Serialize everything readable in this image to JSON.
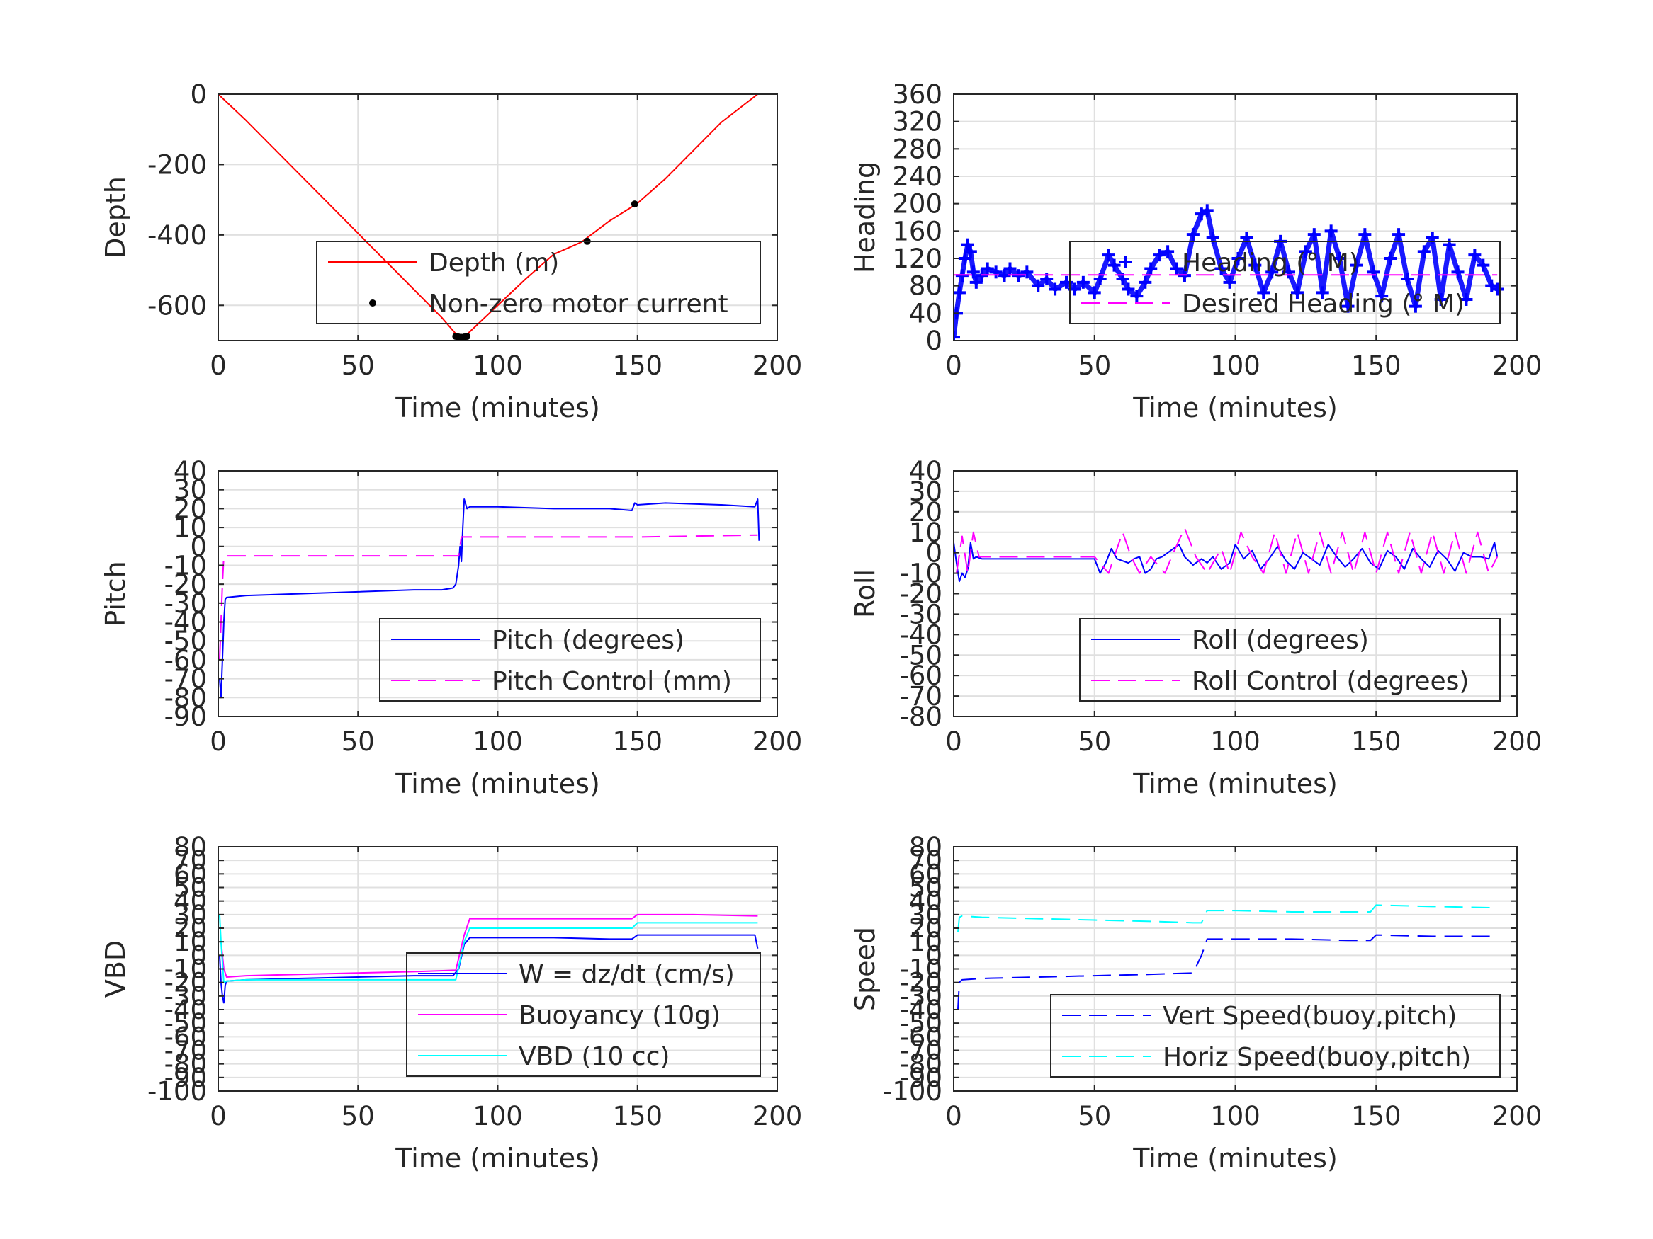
{
  "chart_data": [
    {
      "type": "line",
      "xlabel": "Time (minutes)",
      "ylabel": "Depth",
      "xlim": [
        0,
        200
      ],
      "ylim": [
        -700,
        0
      ],
      "xticks": [
        0,
        50,
        100,
        150,
        200
      ],
      "yticks": [
        0,
        -200,
        -400,
        -600
      ],
      "grid": true,
      "legend_position": "lower-right",
      "series": [
        {
          "name": "Depth (m)",
          "color": "#ff0000",
          "style": "solid",
          "x": [
            0,
            10,
            20,
            30,
            40,
            50,
            60,
            70,
            80,
            86,
            88,
            100,
            110,
            120,
            130,
            140,
            150,
            160,
            170,
            180,
            193
          ],
          "y": [
            0,
            -75,
            -155,
            -235,
            -315,
            -395,
            -475,
            -555,
            -635,
            -690,
            -690,
            -600,
            -525,
            -455,
            -420,
            -360,
            -310,
            -240,
            -160,
            -80,
            0
          ]
        },
        {
          "name": "Non-zero motor current",
          "color": "#000000",
          "style": "dot",
          "x": [
            85,
            86,
            87,
            88,
            89,
            132,
            149
          ],
          "y": [
            -688,
            -690,
            -691,
            -690,
            -688,
            -418,
            -312
          ]
        }
      ]
    },
    {
      "type": "scatter",
      "xlabel": "Time (minutes)",
      "ylabel": "Heading",
      "xlim": [
        0,
        200
      ],
      "ylim": [
        0,
        360
      ],
      "xticks": [
        0,
        50,
        100,
        150,
        200
      ],
      "yticks": [
        0,
        40,
        80,
        120,
        160,
        200,
        240,
        280,
        320,
        360
      ],
      "grid": true,
      "legend_position": "center-right",
      "series": [
        {
          "name": "Heading (° M)",
          "color": "#0000ff",
          "style": "plus",
          "x": [
            0,
            1,
            2,
            3,
            4,
            5,
            6,
            7,
            8,
            10,
            12,
            15,
            18,
            20,
            23,
            26,
            30,
            33,
            36,
            40,
            43,
            46,
            50,
            52,
            55,
            57,
            60,
            62,
            65,
            68,
            70,
            73,
            76,
            79,
            82,
            85,
            88,
            90,
            92,
            95,
            98,
            101,
            104,
            107,
            110,
            113,
            116,
            119,
            122,
            125,
            128,
            131,
            134,
            137,
            140,
            143,
            146,
            149,
            152,
            155,
            158,
            161,
            164,
            167,
            170,
            173,
            176,
            179,
            182,
            185,
            188,
            191,
            193
          ],
          "y": [
            5,
            40,
            70,
            95,
            120,
            140,
            130,
            100,
            85,
            95,
            105,
            100,
            95,
            105,
            95,
            100,
            80,
            90,
            75,
            85,
            75,
            85,
            70,
            90,
            125,
            110,
            90,
            75,
            65,
            85,
            105,
            125,
            130,
            105,
            95,
            155,
            185,
            190,
            150,
            105,
            85,
            120,
            150,
            110,
            70,
            100,
            145,
            100,
            70,
            130,
            155,
            70,
            160,
            120,
            50,
            110,
            155,
            100,
            65,
            120,
            155,
            90,
            50,
            130,
            150,
            60,
            140,
            100,
            60,
            125,
            110,
            80,
            75
          ]
        },
        {
          "name": "Desired Heading (° M)",
          "color": "#ff00ff",
          "style": "dash",
          "x": [
            0,
            193
          ],
          "y": [
            96,
            96
          ]
        }
      ]
    },
    {
      "type": "line",
      "xlabel": "Time (minutes)",
      "ylabel": "Pitch",
      "xlim": [
        0,
        200
      ],
      "ylim": [
        -90,
        40
      ],
      "xticks": [
        0,
        50,
        100,
        150,
        200
      ],
      "yticks": [
        40,
        30,
        20,
        10,
        0,
        -10,
        -20,
        -30,
        -40,
        -50,
        -60,
        -70,
        -80,
        -90
      ],
      "grid": true,
      "legend_position": "lower-right",
      "series": [
        {
          "name": "Pitch (degrees)",
          "color": "#0000ff",
          "style": "solid",
          "x": [
            0.5,
            1,
            1.5,
            2,
            2.5,
            3,
            10,
            30,
            50,
            70,
            80,
            84,
            85,
            86,
            86.5,
            87,
            87.5,
            88,
            89,
            90,
            100,
            120,
            140,
            148,
            149,
            150,
            160,
            180,
            192,
            193,
            193.5
          ],
          "y": [
            -70,
            -80,
            -60,
            -40,
            -28,
            -27,
            -26,
            -25,
            -24,
            -23,
            -23,
            -22,
            -20,
            -10,
            0,
            -8,
            10,
            25,
            20,
            21,
            21,
            20,
            20,
            19,
            23,
            22,
            23,
            22,
            21,
            25,
            3
          ]
        },
        {
          "name": "Pitch Control (mm)",
          "color": "#ff00ff",
          "style": "dash",
          "x": [
            0.5,
            1,
            1.5,
            2,
            86,
            87,
            88,
            150,
            193
          ],
          "y": [
            -60,
            -40,
            -20,
            -5,
            -5,
            5,
            5,
            5,
            6
          ]
        }
      ]
    },
    {
      "type": "line",
      "xlabel": "Time (minutes)",
      "ylabel": "Roll",
      "xlim": [
        0,
        200
      ],
      "ylim": [
        -80,
        40
      ],
      "xticks": [
        0,
        50,
        100,
        150,
        200
      ],
      "yticks": [
        40,
        30,
        20,
        10,
        0,
        -10,
        -20,
        -30,
        -40,
        -50,
        -60,
        -70,
        -80
      ],
      "grid": true,
      "legend_position": "lower-right",
      "series": [
        {
          "name": "Roll (degrees)",
          "color": "#0000ff",
          "style": "solid",
          "x": [
            0,
            1,
            2,
            3,
            4,
            5,
            6,
            7,
            8,
            10,
            20,
            30,
            40,
            50,
            52,
            54,
            56,
            58,
            60,
            62,
            64,
            66,
            68,
            70,
            72,
            74,
            76,
            78,
            80,
            82,
            85,
            88,
            90,
            92,
            95,
            98,
            100,
            103,
            106,
            109,
            112,
            115,
            118,
            121,
            124,
            127,
            130,
            133,
            136,
            139,
            142,
            145,
            148,
            151,
            154,
            157,
            160,
            163,
            166,
            169,
            172,
            175,
            178,
            181,
            184,
            187,
            190,
            192,
            193
          ],
          "y": [
            5,
            -5,
            -14,
            -10,
            -12,
            -8,
            5,
            -3,
            -2,
            -3,
            -3,
            -3,
            -3,
            -3,
            -10,
            -5,
            2,
            -3,
            -4,
            -5,
            -3,
            -2,
            -10,
            -8,
            -3,
            -2,
            0,
            2,
            4,
            -2,
            -6,
            -3,
            -5,
            -2,
            -8,
            -5,
            4,
            -3,
            1,
            -8,
            -3,
            3,
            -4,
            -8,
            0,
            -3,
            -6,
            4,
            -2,
            -7,
            -3,
            2,
            -5,
            -8,
            1,
            -2,
            -8,
            2,
            -3,
            -7,
            1,
            -3,
            -9,
            0,
            -2,
            -2,
            -3,
            5,
            -2
          ]
        },
        {
          "name": "Roll Control (degrees)",
          "color": "#ff00ff",
          "style": "dash",
          "x": [
            1,
            3,
            5,
            7,
            9,
            50,
            55,
            60,
            63,
            66,
            70,
            75,
            78,
            82,
            86,
            90,
            95,
            98,
            102,
            106,
            110,
            114,
            118,
            122,
            126,
            130,
            134,
            138,
            142,
            146,
            150,
            154,
            158,
            162,
            166,
            170,
            174,
            178,
            182,
            186,
            190,
            193
          ],
          "y": [
            -10,
            8,
            -10,
            10,
            -2,
            -2,
            -10,
            10,
            -2,
            -10,
            -2,
            -10,
            0,
            12,
            -2,
            -10,
            2,
            -10,
            10,
            -2,
            -10,
            10,
            -10,
            10,
            -10,
            10,
            -10,
            10,
            -10,
            10,
            -10,
            10,
            -10,
            10,
            -10,
            10,
            -10,
            10,
            -10,
            10,
            -10,
            -2
          ]
        }
      ]
    },
    {
      "type": "line",
      "xlabel": "Time (minutes)",
      "ylabel": "VBD",
      "xlim": [
        0,
        200
      ],
      "ylim": [
        -100,
        80
      ],
      "xticks": [
        0,
        50,
        100,
        150,
        200
      ],
      "yticks": [
        80,
        70,
        60,
        50,
        40,
        30,
        20,
        10,
        0,
        -10,
        -20,
        -30,
        -40,
        -50,
        -60,
        -70,
        -80,
        -90,
        -100
      ],
      "grid": true,
      "legend_position": "lower-right",
      "series": [
        {
          "name": "W = dz/dt (cm/s)",
          "color": "#0000ff",
          "style": "solid",
          "x": [
            0.5,
            1,
            1.5,
            2,
            2.5,
            3,
            10,
            30,
            50,
            70,
            84,
            86,
            88,
            90,
            100,
            120,
            140,
            148,
            150,
            160,
            180,
            192,
            193
          ],
          "y": [
            0,
            -20,
            -30,
            -35,
            -22,
            -19,
            -18,
            -17,
            -16,
            -15,
            -15,
            -10,
            8,
            13,
            13,
            13,
            12,
            12,
            15,
            15,
            15,
            15,
            5
          ]
        },
        {
          "name": "Buoyancy (10g)",
          "color": "#ff00ff",
          "style": "solid",
          "x": [
            1,
            2,
            3,
            10,
            30,
            50,
            70,
            85,
            88,
            90,
            100,
            120,
            140,
            148,
            150,
            170,
            193
          ],
          "y": [
            10,
            -10,
            -16,
            -15,
            -14,
            -13,
            -12,
            -11,
            15,
            27,
            27,
            27,
            27,
            27,
            30,
            30,
            29
          ]
        },
        {
          "name": "VBD (10 cc)",
          "color": "#00ffff",
          "style": "solid",
          "x": [
            0.5,
            1,
            2,
            3,
            10,
            30,
            50,
            70,
            85,
            88,
            90,
            100,
            120,
            140,
            148,
            150,
            170,
            193
          ],
          "y": [
            30,
            10,
            -20,
            -19,
            -18,
            -18,
            -18,
            -18,
            -18,
            10,
            20,
            20,
            20,
            20,
            20,
            24,
            24,
            24
          ]
        }
      ]
    },
    {
      "type": "line",
      "xlabel": "Time (minutes)",
      "ylabel": "Speed",
      "xlim": [
        0,
        200
      ],
      "ylim": [
        -100,
        80
      ],
      "xticks": [
        0,
        50,
        100,
        150,
        200
      ],
      "yticks": [
        80,
        70,
        60,
        50,
        40,
        30,
        20,
        10,
        0,
        -10,
        -20,
        -30,
        -40,
        -50,
        -60,
        -70,
        -80,
        -90,
        -100
      ],
      "grid": true,
      "legend_position": "lower-right",
      "series": [
        {
          "name": "Vert Speed(buoy,pitch)",
          "color": "#0000ff",
          "style": "dash",
          "x": [
            1.5,
            2,
            3,
            10,
            30,
            50,
            70,
            85,
            88,
            90,
            100,
            120,
            140,
            148,
            150,
            170,
            193
          ],
          "y": [
            -40,
            -20,
            -18,
            -17,
            -16,
            -15,
            -14,
            -13,
            0,
            12,
            12,
            12,
            11,
            11,
            15,
            14,
            14
          ]
        },
        {
          "name": "Horiz Speed(buoy,pitch)",
          "color": "#00ffff",
          "style": "dash",
          "x": [
            1.5,
            2,
            3,
            10,
            30,
            50,
            70,
            85,
            88,
            90,
            100,
            120,
            140,
            148,
            150,
            170,
            193
          ],
          "y": [
            17,
            28,
            29,
            28,
            27,
            26,
            25,
            24,
            24,
            33,
            33,
            32,
            32,
            32,
            37,
            36,
            35
          ]
        }
      ]
    }
  ]
}
